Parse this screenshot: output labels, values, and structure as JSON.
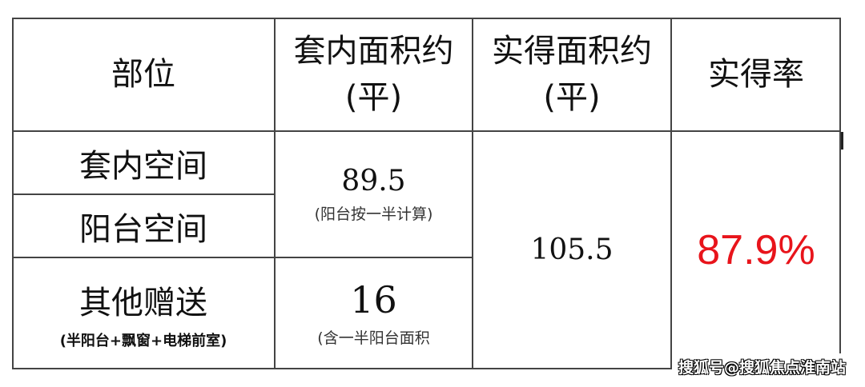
{
  "table": {
    "headers": [
      "部位",
      "套内面积约\n(平)",
      "实得面积约\n(平)",
      "实得率"
    ],
    "header_lines": [
      [
        "部位"
      ],
      [
        "套内面积约",
        "(平)"
      ],
      [
        "实得面积约",
        "(平)"
      ],
      [
        "实得率"
      ]
    ],
    "rows": [
      {
        "part": "套内空间"
      },
      {
        "part": "阳台空间"
      },
      {
        "part": "其他赠送",
        "part_note": "(半阳台+飘窗+电梯前室)"
      }
    ],
    "inner_area_1": {
      "value": "89.5",
      "note": "(阳台按一半计算)"
    },
    "inner_area_2": {
      "value": "16",
      "note": "(含一半阳台面积"
    },
    "actual_area": "105.5",
    "actual_rate": "87.9%",
    "rate_color": "#e8141b"
  },
  "watermark": "搜狐号@搜狐焦点淮南站"
}
